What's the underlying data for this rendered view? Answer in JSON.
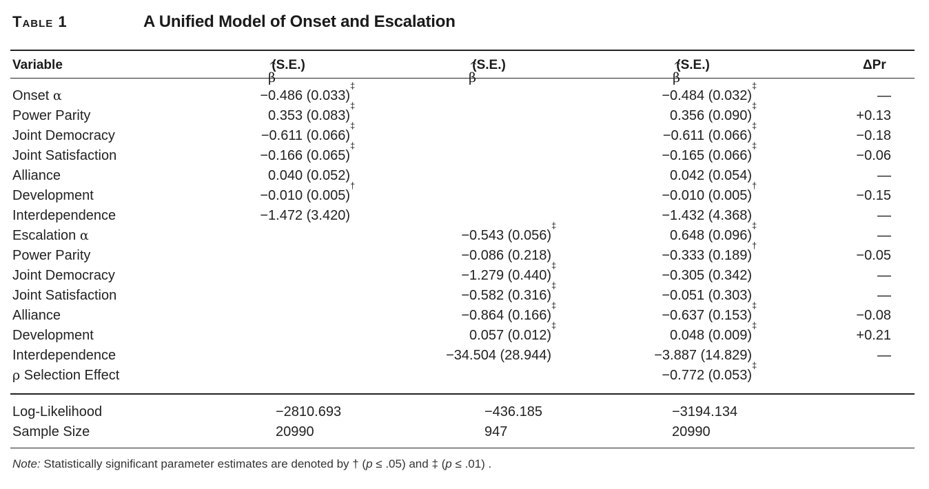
{
  "caption": {
    "label": "Table 1",
    "title": "A Unified Model of Onset and Escalation"
  },
  "header": {
    "variable": "Variable",
    "beta_symbol": "β",
    "beta_hat": "^",
    "se": "(S.E.)",
    "delta_pr": "ΔPr"
  },
  "rows": [
    {
      "v": "Onset ",
      "g": "α",
      "c1": "−0.486 (0.033)",
      "s1": "‡",
      "c2": "",
      "s2": "",
      "c3": "−0.484 (0.032)",
      "s3": "‡",
      "d": "—"
    },
    {
      "v": "Power Parity",
      "g": "",
      "c1": "0.353 (0.083)",
      "s1": "‡",
      "c2": "",
      "s2": "",
      "c3": "0.356 (0.090)",
      "s3": "‡",
      "d": "+0.13"
    },
    {
      "v": "Joint Democracy",
      "g": "",
      "c1": "−0.611 (0.066)",
      "s1": "‡",
      "c2": "",
      "s2": "",
      "c3": "−0.611 (0.066)",
      "s3": "‡",
      "d": "−0.18"
    },
    {
      "v": "Joint Satisfaction",
      "g": "",
      "c1": "−0.166 (0.065)",
      "s1": "‡",
      "c2": "",
      "s2": "",
      "c3": "−0.165 (0.066)",
      "s3": "‡",
      "d": "−0.06"
    },
    {
      "v": "Alliance",
      "g": "",
      "c1": "0.040 (0.052)",
      "s1": "",
      "c2": "",
      "s2": "",
      "c3": "0.042 (0.054)",
      "s3": "",
      "d": "—"
    },
    {
      "v": "Development",
      "g": "",
      "c1": "−0.010 (0.005)",
      "s1": "†",
      "c2": "",
      "s2": "",
      "c3": "−0.010 (0.005)",
      "s3": "†",
      "d": "−0.15"
    },
    {
      "v": "Interdependence",
      "g": "",
      "c1": "−1.472 (3.420)",
      "s1": "",
      "c2": "",
      "s2": "",
      "c3": "−1.432 (4.368)",
      "s3": "",
      "d": "—"
    },
    {
      "v": "Escalation ",
      "g": "α",
      "c1": "",
      "s1": "",
      "c2": "−0.543 (0.056)",
      "s2": "‡",
      "c3": "0.648 (0.096)",
      "s3": "‡",
      "d": "—"
    },
    {
      "v": "Power Parity",
      "g": "",
      "c1": "",
      "s1": "",
      "c2": "−0.086 (0.218)",
      "s2": "",
      "c3": "−0.333 (0.189)",
      "s3": "†",
      "d": "−0.05"
    },
    {
      "v": "Joint Democracy",
      "g": "",
      "c1": "",
      "s1": "",
      "c2": "−1.279 (0.440)",
      "s2": "‡",
      "c3": "−0.305 (0.342)",
      "s3": "",
      "d": "—"
    },
    {
      "v": "Joint Satisfaction",
      "g": "",
      "c1": "",
      "s1": "",
      "c2": "−0.582 (0.316)",
      "s2": "‡",
      "c3": "−0.051 (0.303)",
      "s3": "",
      "d": "—"
    },
    {
      "v": "Alliance",
      "g": "",
      "c1": "",
      "s1": "",
      "c2": "−0.864 (0.166)",
      "s2": "‡",
      "c3": "−0.637 (0.153)",
      "s3": "‡",
      "d": "−0.08"
    },
    {
      "v": "Development",
      "g": "",
      "c1": "",
      "s1": "",
      "c2": "0.057 (0.012)",
      "s2": "‡",
      "c3": "0.048 (0.009)",
      "s3": "‡",
      "d": "+0.21"
    },
    {
      "v": "Interdependence",
      "g": "",
      "c1": "",
      "s1": "",
      "c2": "−34.504 (28.944)",
      "s2": "",
      "c3": "−3.887 (14.829)",
      "s3": "",
      "d": "—"
    },
    {
      "v": " Selection Effect",
      "gp": "ρ",
      "c1": "",
      "s1": "",
      "c2": "",
      "s2": "",
      "c3": "−0.772 (0.053)",
      "s3": "‡",
      "d": ""
    }
  ],
  "stats": [
    {
      "label": "Log-Likelihood",
      "c1": "−2810.693",
      "c2": "−436.185",
      "c3": "−3194.134"
    },
    {
      "label": "Sample Size",
      "c1": "20990",
      "c2": "947",
      "c3": "20990"
    }
  ],
  "note": {
    "lead": "Note:",
    "text_a": " Statistically significant parameter estimates are denoted by † (",
    "p1": "p",
    "text_b": " ≤ .05) and ‡ (",
    "p2": "p",
    "text_c": " ≤ .01) ."
  }
}
